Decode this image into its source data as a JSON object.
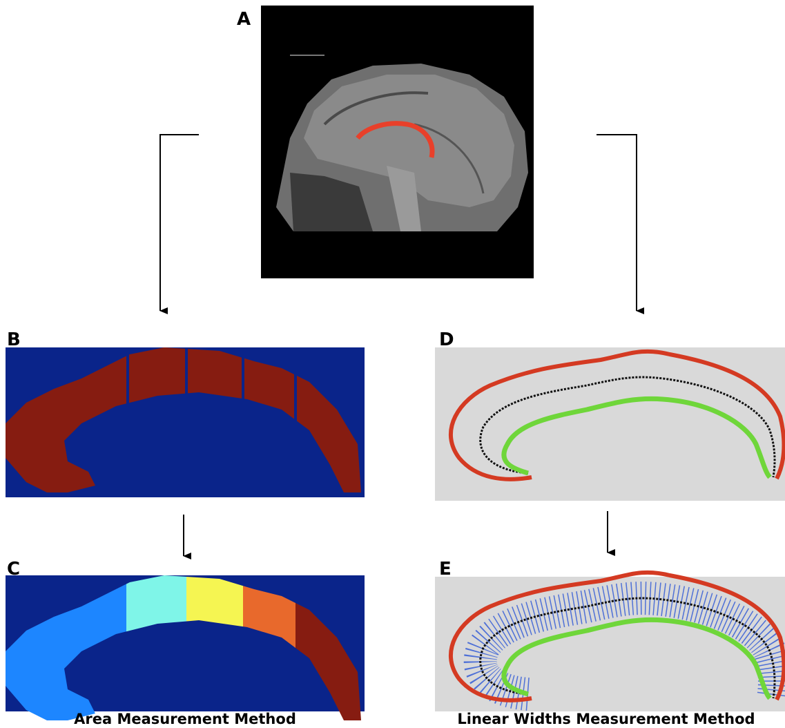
{
  "panel_labels": [
    "A",
    "B",
    "C",
    "D",
    "E"
  ],
  "captions": [
    "Area Measurement Method",
    "Linear Widths Measurement Method"
  ]
}
